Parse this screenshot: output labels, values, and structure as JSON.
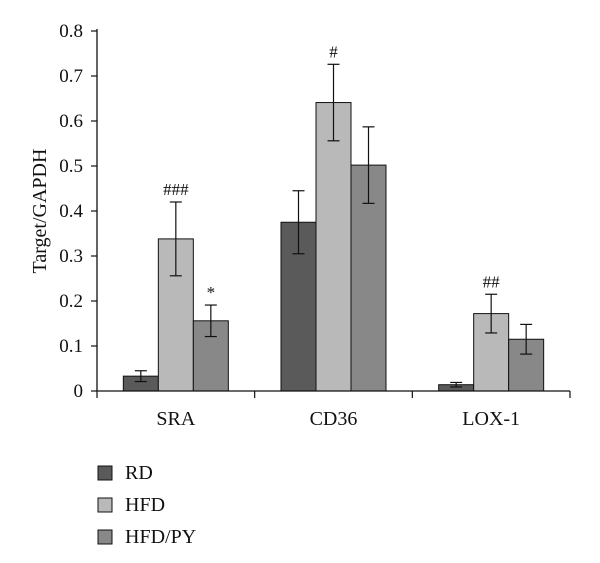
{
  "chart_data": {
    "type": "bar",
    "categories": [
      "SRA",
      "CD36",
      "LOX-1"
    ],
    "series": [
      {
        "name": "RD",
        "color": "#5a5a5a",
        "values": [
          0.033,
          0.375,
          0.014
        ],
        "errors": [
          0.012,
          0.07,
          0.005
        ]
      },
      {
        "name": "HFD",
        "color": "#b9b9b9",
        "values": [
          0.338,
          0.641,
          0.172
        ],
        "errors": [
          0.082,
          0.085,
          0.043
        ]
      },
      {
        "name": "HFD/PY",
        "color": "#888888",
        "values": [
          0.156,
          0.502,
          0.115
        ],
        "errors": [
          0.035,
          0.085,
          0.033
        ]
      }
    ],
    "annotations": [
      {
        "category": 0,
        "series": 1,
        "text": "###"
      },
      {
        "category": 0,
        "series": 2,
        "text": "*"
      },
      {
        "category": 1,
        "series": 1,
        "text": "#"
      },
      {
        "category": 2,
        "series": 1,
        "text": "##"
      }
    ],
    "ylabel": "Target/GAPDH",
    "ylim": [
      0,
      0.8
    ],
    "yticks": [
      "0",
      "0.1",
      "0.2",
      "0.3",
      "0.4",
      "0.5",
      "0.6",
      "0.7",
      "0.8"
    ],
    "grid": false,
    "legend_position": "bottom-left"
  }
}
